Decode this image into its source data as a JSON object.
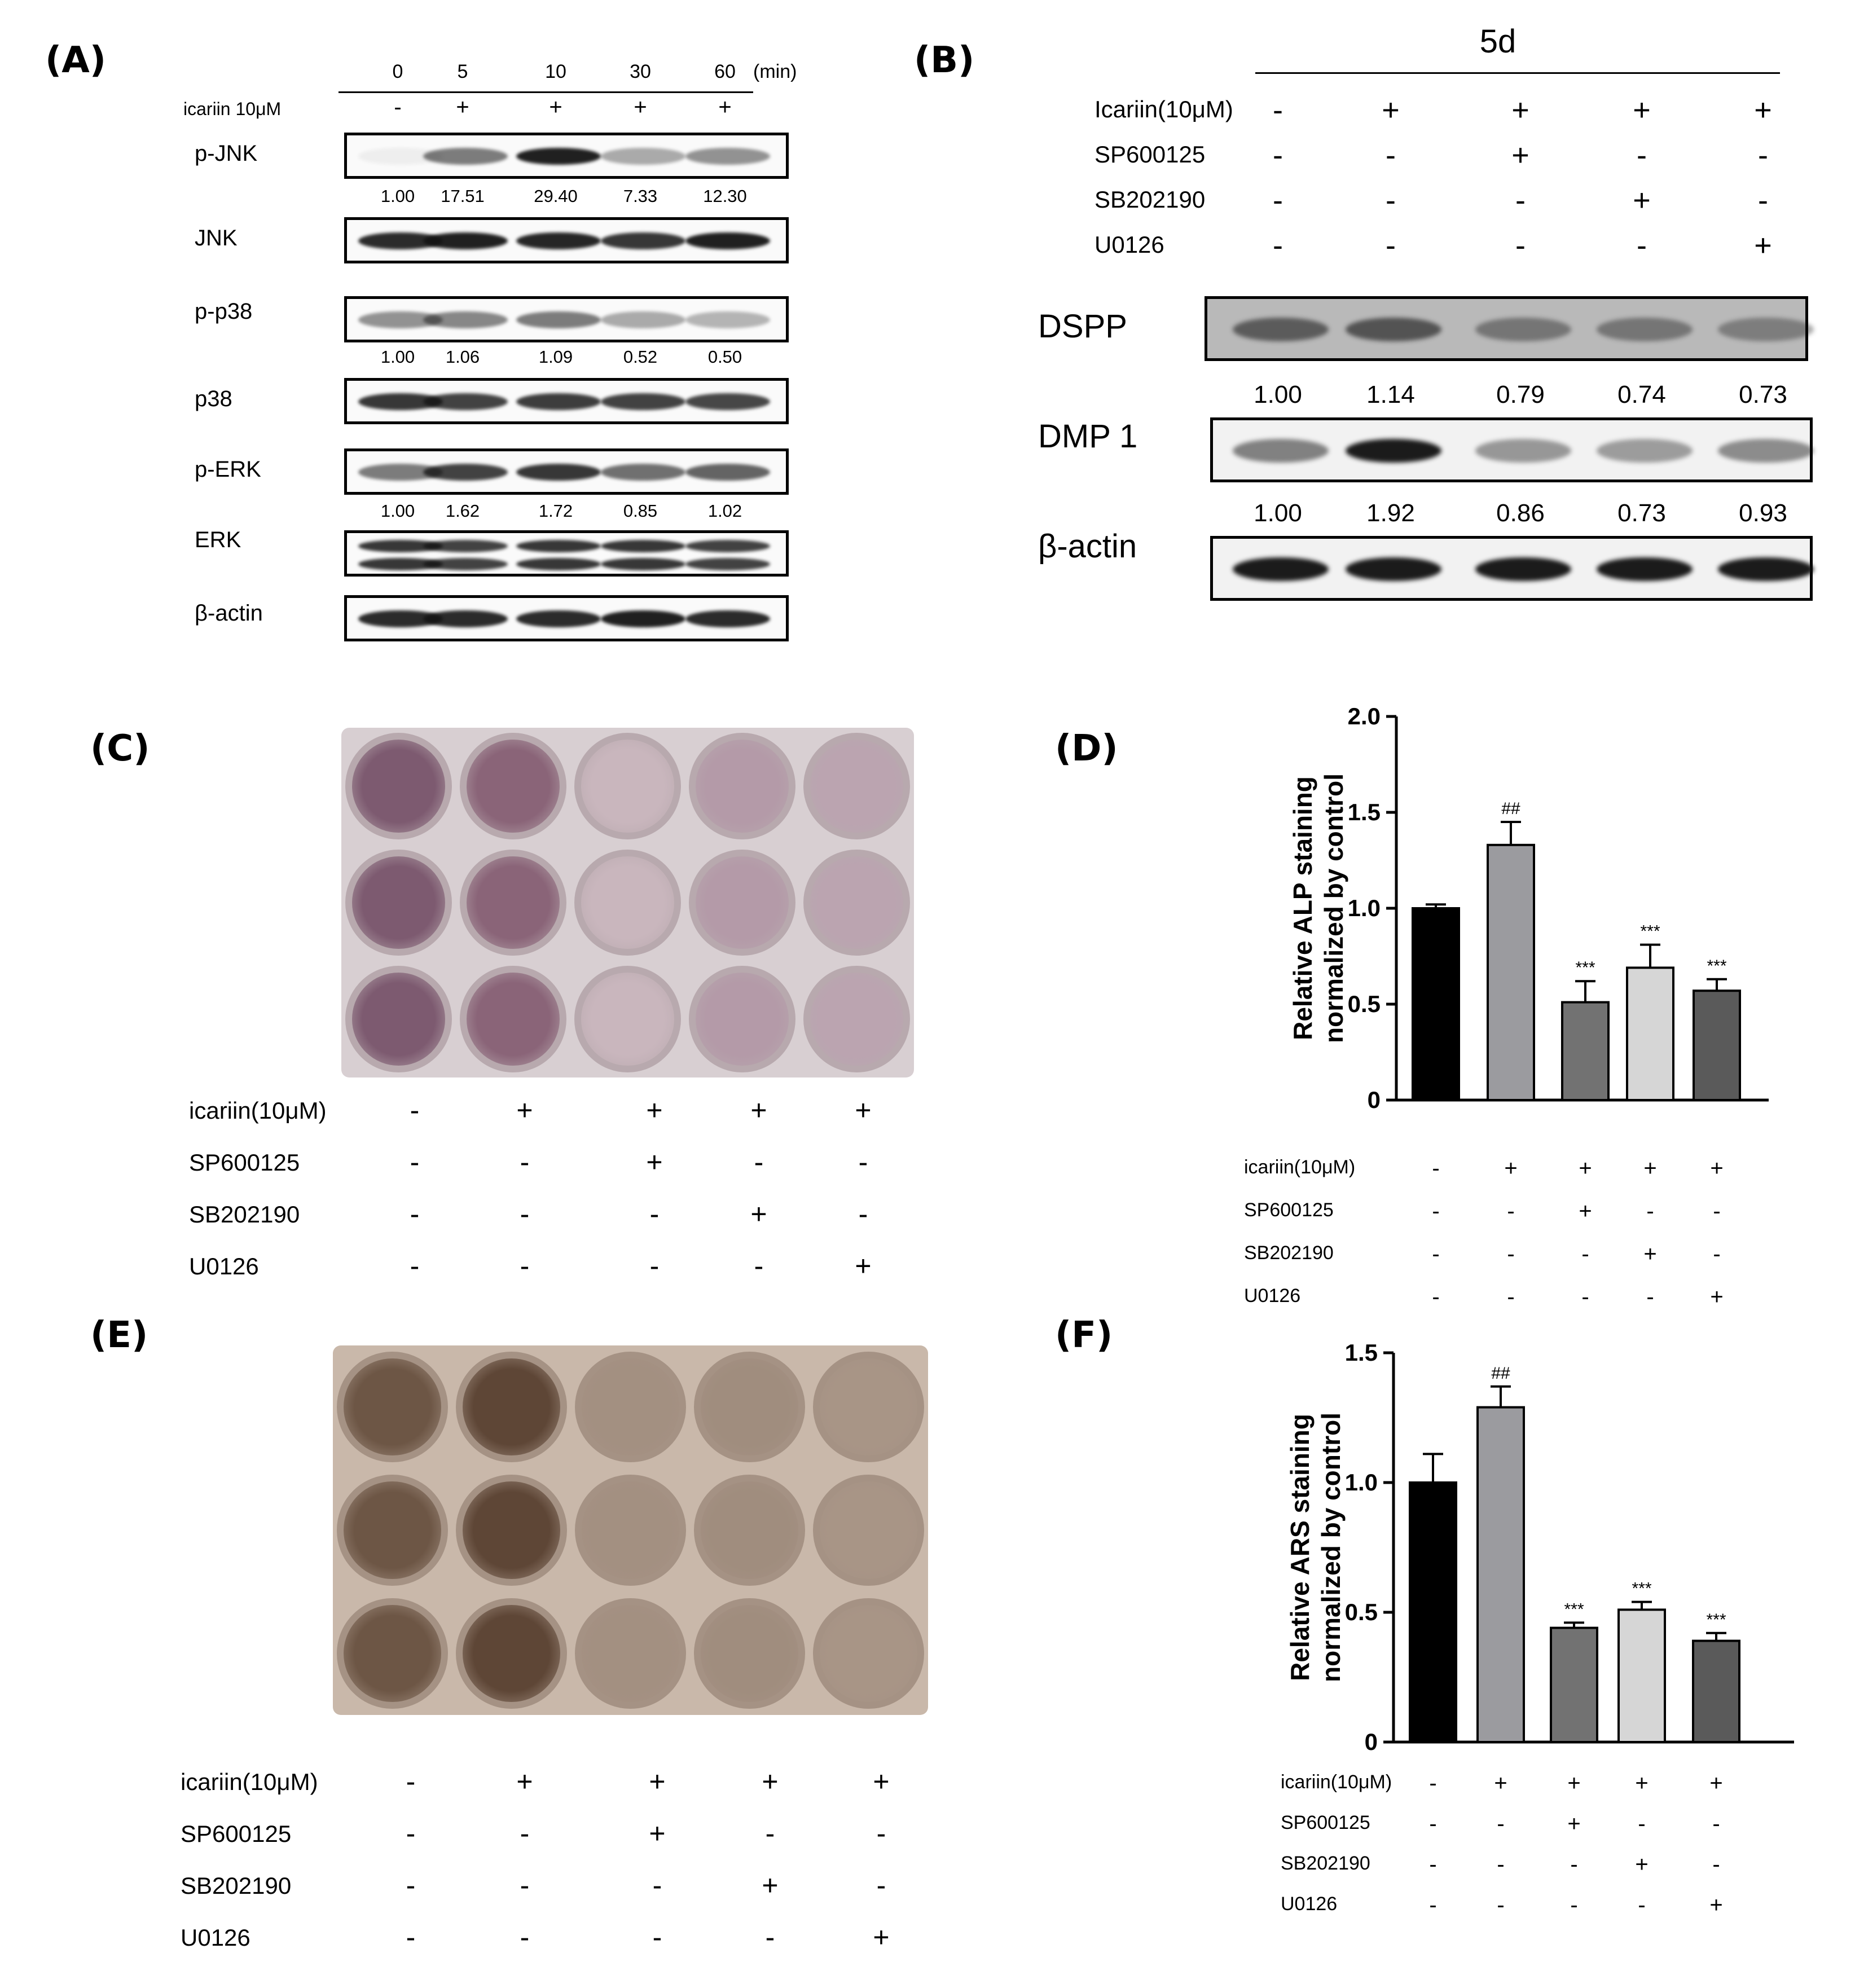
{
  "panel_labels": {
    "A": "(A)",
    "B": "(B)",
    "C": "(C)",
    "D": "(D)",
    "E": "(E)",
    "F": "(F)"
  },
  "panelA": {
    "times": [
      "0",
      "5",
      "10",
      "30",
      "60"
    ],
    "time_unit": "(min)",
    "treatment_label": "icariin 10μM",
    "treatment_signs": [
      "-",
      "+",
      "+",
      "+",
      "+"
    ],
    "blots": [
      {
        "label": "p-JNK",
        "values": [
          "1.00",
          "17.51",
          "29.40",
          "7.33",
          "12.30"
        ],
        "intensity": [
          0.05,
          0.55,
          0.95,
          0.35,
          0.45
        ]
      },
      {
        "label": "JNK",
        "values": null,
        "intensity": [
          0.9,
          0.95,
          0.92,
          0.85,
          0.95
        ]
      },
      {
        "label": "p-p38",
        "values": [
          "1.00",
          "1.06",
          "1.09",
          "0.52",
          "0.50"
        ],
        "intensity": [
          0.45,
          0.5,
          0.55,
          0.35,
          0.3
        ]
      },
      {
        "label": "p38",
        "values": null,
        "intensity": [
          0.85,
          0.8,
          0.82,
          0.8,
          0.78
        ]
      },
      {
        "label": "p-ERK",
        "values": [
          "1.00",
          "1.62",
          "1.72",
          "0.85",
          "1.02"
        ],
        "intensity": [
          0.55,
          0.8,
          0.85,
          0.6,
          0.65
        ]
      },
      {
        "label": "ERK",
        "values": null,
        "intensity": [
          0.85,
          0.8,
          0.85,
          0.85,
          0.8
        ]
      },
      {
        "label": "β-actin",
        "values": null,
        "intensity": [
          0.9,
          0.9,
          0.9,
          0.95,
          0.9
        ]
      }
    ]
  },
  "panelB": {
    "timepoint": "5d",
    "rows": [
      {
        "label": "Icariin(10μM)",
        "signs": [
          "-",
          "+",
          "+",
          "+",
          "+"
        ]
      },
      {
        "label": "SP600125",
        "signs": [
          "-",
          "-",
          "+",
          "-",
          "-"
        ]
      },
      {
        "label": "SB202190",
        "signs": [
          "-",
          "-",
          "-",
          "+",
          "-"
        ]
      },
      {
        "label": "U0126",
        "signs": [
          "-",
          "-",
          "-",
          "-",
          "+"
        ]
      }
    ],
    "blots": [
      {
        "label": "DSPP",
        "values": [
          "1.00",
          "1.14",
          "0.79",
          "0.74",
          "0.73"
        ],
        "intensity": [
          0.55,
          0.6,
          0.4,
          0.4,
          0.35
        ]
      },
      {
        "label": "DMP 1",
        "values": [
          "1.00",
          "1.92",
          "0.86",
          "0.73",
          "0.93"
        ],
        "intensity": [
          0.5,
          0.95,
          0.4,
          0.38,
          0.45
        ]
      },
      {
        "label": "β-actin",
        "values": null,
        "intensity": [
          0.95,
          0.95,
          0.95,
          0.95,
          0.95
        ]
      }
    ]
  },
  "panelC": {
    "rows": [
      {
        "label": "icariin(10μM)",
        "signs": [
          "-",
          "+",
          "+",
          "+",
          "+"
        ]
      },
      {
        "label": "SP600125",
        "signs": [
          "-",
          "-",
          "+",
          "-",
          "-"
        ]
      },
      {
        "label": "SB202190",
        "signs": [
          "-",
          "-",
          "-",
          "+",
          "-"
        ]
      },
      {
        "label": "U0126",
        "signs": [
          "-",
          "-",
          "-",
          "-",
          "+"
        ]
      }
    ]
  },
  "panelE": {
    "rows": [
      {
        "label": "icariin(10μM)",
        "signs": [
          "-",
          "+",
          "+",
          "+",
          "+"
        ]
      },
      {
        "label": "SP600125",
        "signs": [
          "-",
          "-",
          "+",
          "-",
          "-"
        ]
      },
      {
        "label": "SB202190",
        "signs": [
          "-",
          "-",
          "-",
          "+",
          "-"
        ]
      },
      {
        "label": "U0126",
        "signs": [
          "-",
          "-",
          "-",
          "-",
          "+"
        ]
      }
    ]
  },
  "chart_data": [
    {
      "type": "bar",
      "panel": "D",
      "ylabel": "Relative ALP staining normalized by control",
      "ylim": [
        0,
        2.0
      ],
      "yticks": [
        "0",
        "0.5",
        "1.0",
        "1.5",
        "2.0"
      ],
      "values": [
        1.0,
        1.33,
        0.51,
        0.69,
        0.57
      ],
      "errors": [
        0.02,
        0.12,
        0.11,
        0.12,
        0.06
      ],
      "annotations": [
        "",
        "##",
        "***",
        "***",
        "***"
      ],
      "colors": [
        "#000000",
        "#9b9b9f",
        "#727272",
        "#d6d6d6",
        "#5a5a5a"
      ],
      "rows": [
        {
          "label": "icariin(10μM)",
          "signs": [
            "-",
            "+",
            "+",
            "+",
            "+"
          ]
        },
        {
          "label": "SP600125",
          "signs": [
            "-",
            "-",
            "+",
            "-",
            "-"
          ]
        },
        {
          "label": "SB202190",
          "signs": [
            "-",
            "-",
            "-",
            "+",
            "-"
          ]
        },
        {
          "label": "U0126",
          "signs": [
            "-",
            "-",
            "-",
            "-",
            "+"
          ]
        }
      ]
    },
    {
      "type": "bar",
      "panel": "F",
      "ylabel": "Relative ARS staining normalized by control",
      "ylim": [
        0,
        1.5
      ],
      "yticks": [
        "0",
        "0.5",
        "1.0",
        "1.5"
      ],
      "values": [
        1.0,
        1.29,
        0.44,
        0.51,
        0.39
      ],
      "errors": [
        0.11,
        0.08,
        0.02,
        0.03,
        0.03
      ],
      "annotations": [
        "",
        "##",
        "***",
        "***",
        "***"
      ],
      "colors": [
        "#000000",
        "#9b9b9f",
        "#727272",
        "#d6d6d6",
        "#5a5a5a"
      ],
      "rows": [
        {
          "label": "icariin(10μM)",
          "signs": [
            "-",
            "+",
            "+",
            "+",
            "+"
          ]
        },
        {
          "label": "SP600125",
          "signs": [
            "-",
            "-",
            "+",
            "-",
            "-"
          ]
        },
        {
          "label": "SB202190",
          "signs": [
            "-",
            "-",
            "-",
            "+",
            "-"
          ]
        },
        {
          "label": "U0126",
          "signs": [
            "-",
            "-",
            "-",
            "-",
            "+"
          ]
        }
      ]
    }
  ]
}
